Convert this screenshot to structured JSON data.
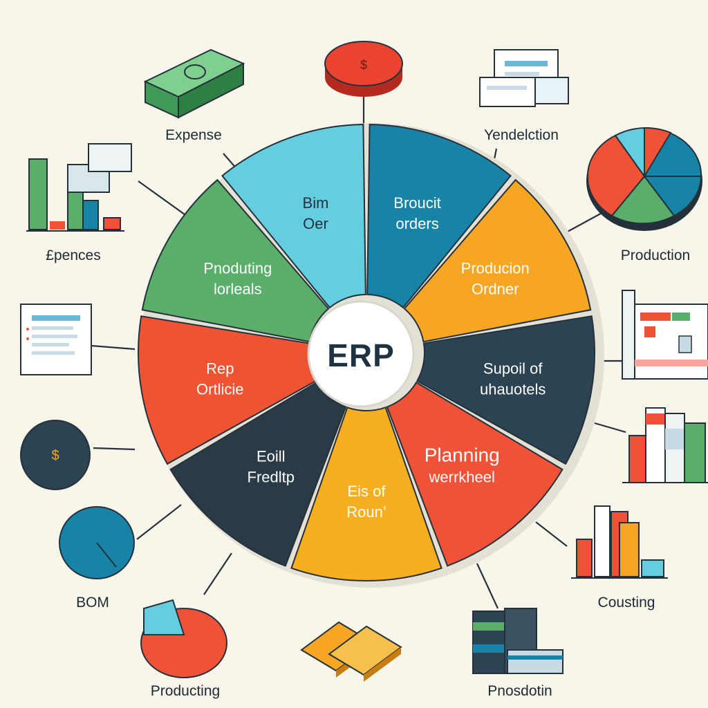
{
  "center": {
    "label": "ERP"
  },
  "segments": [
    {
      "lines": [
        "Broucit",
        "orders"
      ],
      "color": "#1784a7"
    },
    {
      "lines": [
        "Producion",
        "Ordner"
      ],
      "color": "#f6a623"
    },
    {
      "lines": [
        "Supoil of",
        "uhauotels"
      ],
      "color": "#2b4352"
    },
    {
      "lines": [
        "Planning",
        "werrkheel"
      ],
      "color": "#ef5236"
    },
    {
      "lines": [
        "Eis of",
        "Roun’"
      ],
      "color": "#f7ae1f"
    },
    {
      "lines": [
        "Eoill",
        "Fredltp"
      ],
      "color": "#2a3a47"
    },
    {
      "lines": [
        "Rep",
        "Ortlicie"
      ],
      "color": "#ee5434"
    },
    {
      "lines": [
        "Pnoduting",
        "lorleals"
      ],
      "color": "#5aae6a"
    },
    {
      "lines": [
        "Bim",
        "Oer"
      ],
      "color": "#64cde0"
    }
  ],
  "outer_labels": {
    "expense": "Expense",
    "vendelction": "Yendelction",
    "epences": "£pences",
    "production_right": "Production",
    "bom": "BOM",
    "cousting": "Cousting",
    "producting": "Producting",
    "pnosdotin": "Pnosdotin"
  },
  "icon_glyphs": {
    "dollar_coin": "$",
    "red_disc": "$"
  }
}
